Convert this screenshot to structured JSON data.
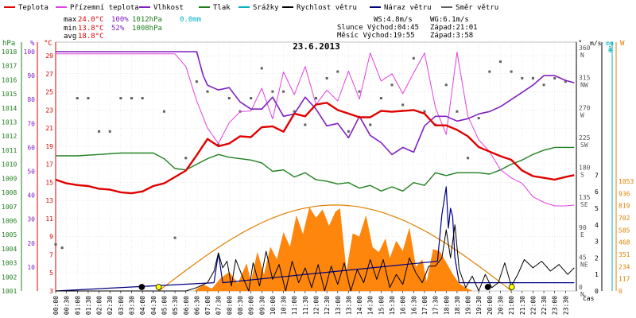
{
  "chart_data": {
    "type": "line",
    "title": "23.6.2013",
    "legend": [
      {
        "name": "Teplota",
        "color": "#e00000"
      },
      {
        "name": "Přízemní teplota",
        "color": "#e040e0"
      },
      {
        "name": "Vlhkost",
        "color": "#8020c0"
      },
      {
        "name": "Tlak",
        "color": "#208020"
      },
      {
        "name": "Srážky",
        "color": "#00b0c0"
      },
      {
        "name": "Rychlost větru",
        "color": "#000000"
      },
      {
        "name": "Náraz větru",
        "color": "#000080"
      },
      {
        "name": "Směr větru",
        "color": "#606060"
      }
    ],
    "stats": {
      "max_label": "max",
      "max_temp": "24.0°C",
      "max_hum": "100%",
      "max_press": "1012hPa",
      "max_rain": "0.0mm",
      "min_label": "min",
      "min_temp": "13.8°C",
      "min_hum": "52%",
      "min_press": "1008hPa",
      "avg_label": "avg",
      "avg_temp": "18.8°C",
      "ws": "WS:4.8m/s",
      "wg": "WG:6.1m/s",
      "sun": "Slunce Východ:04:45",
      "sun_set": "Západ:21:01",
      "moon": "Měsíc Východ:19:55",
      "moon_set": "Západ:3:58"
    },
    "axes": {
      "hpa_unit": "hPa",
      "pct_unit": "%",
      "temp_unit": "°C",
      "dir_unit": "°",
      "ms_unit": "m/s",
      "mm_unit": "mm",
      "w_unit": "W",
      "hpa_ticks": [
        "1001",
        "1002",
        "1003",
        "1004",
        "1005",
        "1006",
        "1007",
        "1008",
        "1009",
        "1010",
        "1011",
        "1012",
        "1013",
        "1014",
        "1015",
        "1016",
        "1017",
        "1018"
      ],
      "pct_ticks": [
        "10",
        "20",
        "30",
        "40",
        "50",
        "60",
        "70",
        "80",
        "90",
        "100"
      ],
      "temp_ticks": [
        "3",
        "5",
        "7",
        "9",
        "11",
        "13",
        "15",
        "17",
        "19",
        "21",
        "23",
        "25",
        "27",
        "29"
      ],
      "dir_ticks": [
        "0",
        "45",
        "90",
        "135",
        "180",
        "225",
        "270",
        "315",
        "360"
      ],
      "dir_names": [
        "N",
        "NE",
        "E",
        "SE",
        "S",
        "SW",
        "W",
        "NW",
        "N"
      ],
      "ms_ticks": [
        "0",
        "1",
        "2",
        "3",
        "4",
        "5",
        "6",
        "7"
      ],
      "mm_ticks": [
        "0",
        "1"
      ],
      "w_ticks": [
        "0",
        "117",
        "234",
        "351",
        "468",
        "585",
        "702",
        "819",
        "936",
        "1053"
      ],
      "x_label": "čas",
      "x_ticks": [
        "00:00",
        "00:30",
        "01:00",
        "01:30",
        "02:00",
        "02:30",
        "03:00",
        "03:30",
        "04:00",
        "04:30",
        "05:00",
        "05:30",
        "06:00",
        "06:30",
        "07:00",
        "07:30",
        "08:00",
        "08:30",
        "09:00",
        "09:30",
        "10:00",
        "10:30",
        "11:00",
        "11:30",
        "12:00",
        "12:30",
        "13:00",
        "13:30",
        "14:00",
        "14:30",
        "15:00",
        "15:30",
        "16:00",
        "16:30",
        "17:00",
        "17:30",
        "18:00",
        "18:30",
        "19:00",
        "19:30",
        "20:00",
        "20:30",
        "21:00",
        "21:30",
        "22:00",
        "22:30",
        "23:00",
        "23:30"
      ]
    },
    "x_range": [
      0,
      24
    ],
    "temp_range": [
      3,
      30.5
    ],
    "temperature": [
      [
        0,
        15.3
      ],
      [
        0.5,
        14.9
      ],
      [
        1,
        14.7
      ],
      [
        1.5,
        14.6
      ],
      [
        2,
        14.3
      ],
      [
        2.5,
        14.2
      ],
      [
        3,
        13.9
      ],
      [
        3.5,
        13.8
      ],
      [
        4,
        14.0
      ],
      [
        4.5,
        14.6
      ],
      [
        5,
        14.9
      ],
      [
        5.5,
        15.6
      ],
      [
        6,
        16.3
      ],
      [
        6.5,
        18.0
      ],
      [
        7,
        19.8
      ],
      [
        7.5,
        19.0
      ],
      [
        8,
        19.3
      ],
      [
        8.5,
        20.1
      ],
      [
        9,
        20.0
      ],
      [
        9.5,
        21.1
      ],
      [
        10,
        21.2
      ],
      [
        10.5,
        20.6
      ],
      [
        11,
        22.6
      ],
      [
        11.5,
        22.3
      ],
      [
        12,
        23.6
      ],
      [
        12.5,
        23.8
      ],
      [
        13,
        23.0
      ],
      [
        13.5,
        22.6
      ],
      [
        14,
        22.2
      ],
      [
        14.5,
        22.2
      ],
      [
        15,
        22.9
      ],
      [
        15.5,
        22.8
      ],
      [
        16,
        22.9
      ],
      [
        16.5,
        23.0
      ],
      [
        17,
        22.6
      ],
      [
        17.5,
        21.3
      ],
      [
        18,
        21.3
      ],
      [
        18.5,
        20.8
      ],
      [
        19,
        20.1
      ],
      [
        19.5,
        18.9
      ],
      [
        20,
        18.4
      ],
      [
        20.5,
        17.9
      ],
      [
        21,
        17.5
      ],
      [
        21.5,
        16.3
      ],
      [
        22,
        15.7
      ],
      [
        22.5,
        15.5
      ],
      [
        23,
        15.3
      ],
      [
        23.5,
        15.6
      ],
      [
        23.9,
        15.8
      ]
    ],
    "ground_temperature": [
      [
        0,
        29.2
      ],
      [
        5,
        29.2
      ],
      [
        5.5,
        29.2
      ],
      [
        6,
        27.8
      ],
      [
        6.5,
        24.0
      ],
      [
        7,
        21.0
      ],
      [
        7.5,
        19.3
      ],
      [
        8,
        21.6
      ],
      [
        8.5,
        22.8
      ],
      [
        9,
        22.9
      ],
      [
        9.5,
        25.4
      ],
      [
        10,
        22.0
      ],
      [
        10.5,
        27.2
      ],
      [
        11,
        24.7
      ],
      [
        11.5,
        27.8
      ],
      [
        12,
        23.6
      ],
      [
        12.5,
        25.2
      ],
      [
        13,
        24.0
      ],
      [
        13.5,
        27.3
      ],
      [
        14,
        24.2
      ],
      [
        14.5,
        29.3
      ],
      [
        15,
        26.2
      ],
      [
        15.5,
        27.0
      ],
      [
        16,
        24.8
      ],
      [
        16.5,
        27.1
      ],
      [
        17,
        29.3
      ],
      [
        17.5,
        23.3
      ],
      [
        18,
        20.3
      ],
      [
        18.5,
        29.4
      ],
      [
        19,
        22.3
      ],
      [
        19.5,
        19.7
      ],
      [
        20,
        18.4
      ],
      [
        20.5,
        16.4
      ],
      [
        21,
        15.5
      ],
      [
        21.5,
        14.9
      ],
      [
        22,
        13.4
      ],
      [
        22.5,
        12.8
      ],
      [
        23,
        12.4
      ],
      [
        23.5,
        12.4
      ],
      [
        23.9,
        12.5
      ]
    ],
    "humidity": [
      [
        0,
        100
      ],
      [
        6.5,
        100
      ],
      [
        6.8,
        90
      ],
      [
        7,
        86
      ],
      [
        7.5,
        84
      ],
      [
        8,
        85
      ],
      [
        8.5,
        79
      ],
      [
        9,
        76
      ],
      [
        9.5,
        76
      ],
      [
        10,
        81
      ],
      [
        10.5,
        73
      ],
      [
        11,
        74
      ],
      [
        11.5,
        81
      ],
      [
        12,
        76
      ],
      [
        12.5,
        69
      ],
      [
        13,
        70
      ],
      [
        13.5,
        64
      ],
      [
        14,
        73
      ],
      [
        14.5,
        65
      ],
      [
        15,
        62
      ],
      [
        15.5,
        57
      ],
      [
        16,
        60
      ],
      [
        16.5,
        58
      ],
      [
        17,
        69
      ],
      [
        17.5,
        73
      ],
      [
        18,
        73
      ],
      [
        18.5,
        71
      ],
      [
        19,
        72
      ],
      [
        19.5,
        74
      ],
      [
        20,
        75
      ],
      [
        20.5,
        77
      ],
      [
        21,
        80
      ],
      [
        21.5,
        83
      ],
      [
        22,
        86
      ],
      [
        22.5,
        90
      ],
      [
        23,
        90
      ],
      [
        23.5,
        88
      ],
      [
        23.9,
        87
      ]
    ],
    "pressure": [
      [
        0,
        1010.6
      ],
      [
        1,
        1010.6
      ],
      [
        2,
        1010.7
      ],
      [
        3,
        1010.8
      ],
      [
        4,
        1010.8
      ],
      [
        4.5,
        1010.8
      ],
      [
        5,
        1010.4
      ],
      [
        5.5,
        1009.7
      ],
      [
        6,
        1009.6
      ],
      [
        6.5,
        1010.0
      ],
      [
        7,
        1010.4
      ],
      [
        7.5,
        1010.7
      ],
      [
        8,
        1010.5
      ],
      [
        8.5,
        1010.4
      ],
      [
        9,
        1010.3
      ],
      [
        9.5,
        1010.1
      ],
      [
        10,
        1009.5
      ],
      [
        10.5,
        1009.6
      ],
      [
        11,
        1009.1
      ],
      [
        11.5,
        1009.4
      ],
      [
        12,
        1008.9
      ],
      [
        12.5,
        1008.8
      ],
      [
        13,
        1008.6
      ],
      [
        13.5,
        1008.7
      ],
      [
        14,
        1008.3
      ],
      [
        14.5,
        1008.5
      ],
      [
        15,
        1008.1
      ],
      [
        15.5,
        1008.4
      ],
      [
        16,
        1008.1
      ],
      [
        16.5,
        1008.7
      ],
      [
        17,
        1008.5
      ],
      [
        17.5,
        1009.4
      ],
      [
        18,
        1009.2
      ],
      [
        18.5,
        1009.4
      ],
      [
        19,
        1009.4
      ],
      [
        19.5,
        1009.4
      ],
      [
        20,
        1009.3
      ],
      [
        20.5,
        1009.6
      ],
      [
        21,
        1010.0
      ],
      [
        21.5,
        1010.3
      ],
      [
        22,
        1010.7
      ],
      [
        22.5,
        1011.0
      ],
      [
        23,
        1011.2
      ],
      [
        23.5,
        1011.2
      ],
      [
        23.9,
        1011.2
      ]
    ],
    "wind_speed": [
      [
        0,
        0
      ],
      [
        6,
        0
      ],
      [
        6.5,
        0.2
      ],
      [
        7,
        0.5
      ],
      [
        7.3,
        1.2
      ],
      [
        7.5,
        2.3
      ],
      [
        7.7,
        1.4
      ],
      [
        7.9,
        1.8
      ],
      [
        8.1,
        0.3
      ],
      [
        8.3,
        1.9
      ],
      [
        8.6,
        0.9
      ],
      [
        8.9,
        0
      ],
      [
        9.1,
        1.7
      ],
      [
        9.4,
        0.3
      ],
      [
        9.7,
        2.4
      ],
      [
        10,
        0.7
      ],
      [
        10.3,
        1.6
      ],
      [
        10.6,
        0
      ],
      [
        10.9,
        1.8
      ],
      [
        11.2,
        0.5
      ],
      [
        11.5,
        1.4
      ],
      [
        11.8,
        0.2
      ],
      [
        12.1,
        1.6
      ],
      [
        12.4,
        0
      ],
      [
        12.7,
        1.5
      ],
      [
        13,
        0.4
      ],
      [
        13.3,
        1.7
      ],
      [
        13.6,
        0
      ],
      [
        13.9,
        1.3
      ],
      [
        14.2,
        0.5
      ],
      [
        14.5,
        1.9
      ],
      [
        14.8,
        0.7
      ],
      [
        15.1,
        1.9
      ],
      [
        15.4,
        0.2
      ],
      [
        15.7,
        1.0
      ],
      [
        16,
        0.4
      ],
      [
        16.3,
        2.0
      ],
      [
        16.6,
        1.1
      ],
      [
        16.9,
        0.5
      ],
      [
        17.2,
        1.5
      ],
      [
        17.5,
        1.5
      ],
      [
        17.8,
        2.0
      ],
      [
        18,
        3.7
      ],
      [
        18.2,
        2.0
      ],
      [
        18.4,
        4.0
      ],
      [
        18.6,
        1.3
      ],
      [
        18.9,
        0.2
      ],
      [
        19.2,
        0.9
      ],
      [
        19.5,
        0
      ],
      [
        19.8,
        1.0
      ],
      [
        20.1,
        0.2
      ],
      [
        20.4,
        0.5
      ],
      [
        20.7,
        1.7
      ],
      [
        21,
        0.3
      ],
      [
        21.3,
        1.0
      ],
      [
        21.6,
        1.9
      ],
      [
        22,
        1.4
      ],
      [
        22.4,
        1.8
      ],
      [
        22.8,
        1.2
      ],
      [
        23.2,
        1.6
      ],
      [
        23.6,
        1.0
      ],
      [
        23.9,
        1.4
      ]
    ],
    "wind_gust": [
      [
        0,
        0
      ],
      [
        7.3,
        0.5
      ],
      [
        7.5,
        2.3
      ],
      [
        7.7,
        0.5
      ],
      [
        17.6,
        1.8
      ],
      [
        17.8,
        4.6
      ],
      [
        18.0,
        6.3
      ],
      [
        18.1,
        3.8
      ],
      [
        18.2,
        5.0
      ],
      [
        18.3,
        4.5
      ],
      [
        18.4,
        2.0
      ],
      [
        18.6,
        0.5
      ],
      [
        23.9,
        0.5
      ]
    ],
    "solar_radiation": [
      [
        6.4,
        0
      ],
      [
        6.8,
        60
      ],
      [
        7.2,
        20
      ],
      [
        7.6,
        120
      ],
      [
        8,
        180
      ],
      [
        8.4,
        70
      ],
      [
        8.8,
        260
      ],
      [
        9,
        80
      ],
      [
        9.3,
        370
      ],
      [
        9.6,
        150
      ],
      [
        9.9,
        420
      ],
      [
        10.2,
        300
      ],
      [
        10.5,
        560
      ],
      [
        10.8,
        420
      ],
      [
        11.1,
        720
      ],
      [
        11.4,
        540
      ],
      [
        11.7,
        800
      ],
      [
        12,
        700
      ],
      [
        12.3,
        780
      ],
      [
        12.6,
        620
      ],
      [
        12.9,
        760
      ],
      [
        13.1,
        790
      ],
      [
        13.4,
        180
      ],
      [
        13.7,
        550
      ],
      [
        14,
        520
      ],
      [
        14.3,
        720
      ],
      [
        14.6,
        420
      ],
      [
        14.9,
        370
      ],
      [
        15.2,
        500
      ],
      [
        15.4,
        310
      ],
      [
        15.7,
        480
      ],
      [
        16,
        380
      ],
      [
        16.3,
        600
      ],
      [
        16.6,
        230
      ],
      [
        16.9,
        300
      ],
      [
        17.1,
        80
      ],
      [
        17.4,
        400
      ],
      [
        17.7,
        380
      ],
      [
        18,
        270
      ],
      [
        18.3,
        160
      ],
      [
        18.6,
        70
      ],
      [
        18.9,
        30
      ],
      [
        19.2,
        0
      ]
    ],
    "sun_elevation_curve": {
      "rise": 4.75,
      "set": 21.02,
      "peak": 825
    },
    "wind_direction": [
      [
        0,
        70
      ],
      [
        0.3,
        65
      ],
      [
        1,
        290
      ],
      [
        1.5,
        290
      ],
      [
        2,
        240
      ],
      [
        2.5,
        240
      ],
      [
        3,
        290
      ],
      [
        3.5,
        290
      ],
      [
        4,
        290
      ],
      [
        5,
        270
      ],
      [
        5.5,
        80
      ],
      [
        6,
        200
      ],
      [
        6.5,
        315
      ],
      [
        7,
        300
      ],
      [
        7.5,
        220
      ],
      [
        8,
        290
      ],
      [
        8.5,
        270
      ],
      [
        9,
        290
      ],
      [
        9.5,
        335
      ],
      [
        10,
        300
      ],
      [
        10.5,
        300
      ],
      [
        11,
        270
      ],
      [
        11.5,
        250
      ],
      [
        12,
        290
      ],
      [
        12.5,
        320
      ],
      [
        13,
        330
      ],
      [
        13.5,
        240
      ],
      [
        14,
        300
      ],
      [
        14.5,
        250
      ],
      [
        15,
        290
      ],
      [
        15.5,
        310
      ],
      [
        16,
        280
      ],
      [
        16.5,
        350
      ],
      [
        17,
        270
      ],
      [
        17.5,
        250
      ],
      [
        18,
        310
      ],
      [
        18.5,
        270
      ],
      [
        19,
        200
      ],
      [
        19.5,
        260
      ],
      [
        20,
        330
      ],
      [
        20.5,
        345
      ],
      [
        21,
        330
      ],
      [
        21.5,
        320
      ],
      [
        22,
        320
      ],
      [
        22.5,
        310
      ],
      [
        23,
        320
      ],
      [
        23.5,
        315
      ]
    ],
    "markers": [
      {
        "type": "moonset",
        "hour": 3.97,
        "color": "#000000"
      },
      {
        "type": "sunrise",
        "hour": 4.75,
        "color": "#ffff00"
      },
      {
        "type": "moonrise",
        "hour": 19.92,
        "color": "#000000"
      },
      {
        "type": "sunset",
        "hour": 21.02,
        "color": "#ffff00"
      }
    ],
    "grid": true
  }
}
